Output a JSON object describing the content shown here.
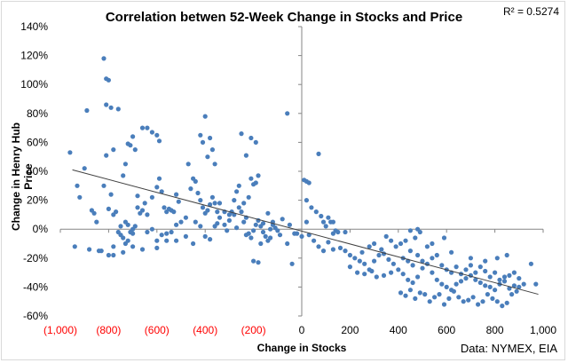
{
  "chart_data": {
    "type": "scatter",
    "title": "Correlation betwen 52-Week Change in Stocks and Price",
    "xlabel": "Change in Stocks",
    "ylabel": "Change in Henry Hub Price",
    "annotation_r2": "R² = 0.5274",
    "source": "Data: NYMEX, EIA",
    "xlim": [
      -1000,
      1000
    ],
    "ylim": [
      -60,
      140
    ],
    "x_ticks": [
      {
        "label": "(1,000)",
        "value": -1000,
        "color": "#ff0000"
      },
      {
        "label": "(800)",
        "value": -800,
        "color": "#ff0000"
      },
      {
        "label": "(600)",
        "value": -600,
        "color": "#ff0000"
      },
      {
        "label": "(400)",
        "value": -400,
        "color": "#ff0000"
      },
      {
        "label": "(200)",
        "value": -200,
        "color": "#ff0000"
      },
      {
        "label": "0",
        "value": 0,
        "color": "#000000"
      },
      {
        "label": "200",
        "value": 200,
        "color": "#000000"
      },
      {
        "label": "400",
        "value": 400,
        "color": "#000000"
      },
      {
        "label": "600",
        "value": 600,
        "color": "#000000"
      },
      {
        "label": "800",
        "value": 800,
        "color": "#000000"
      },
      {
        "label": "1,000",
        "value": 1000,
        "color": "#000000"
      }
    ],
    "y_ticks": [
      {
        "label": "140%",
        "value": 140
      },
      {
        "label": "120%",
        "value": 120
      },
      {
        "label": "100%",
        "value": 100
      },
      {
        "label": "80%",
        "value": 80
      },
      {
        "label": "60%",
        "value": 60
      },
      {
        "label": "40%",
        "value": 40
      },
      {
        "label": "20%",
        "value": 20
      },
      {
        "label": "0%",
        "value": 0
      },
      {
        "label": "-20%",
        "value": -20
      },
      {
        "label": "-40%",
        "value": -40
      },
      {
        "label": "-60%",
        "value": -60
      }
    ],
    "point_color": "#4a7ebb",
    "trendline": {
      "x": [
        -950,
        980
      ],
      "y": [
        41,
        -45
      ],
      "color": "#404040"
    },
    "points": [
      [
        -960,
        53
      ],
      [
        -930,
        30
      ],
      [
        -900,
        42
      ],
      [
        -890,
        82
      ],
      [
        -870,
        13
      ],
      [
        -860,
        11
      ],
      [
        -920,
        22
      ],
      [
        -940,
        -12
      ],
      [
        -880,
        -14
      ],
      [
        -850,
        5
      ],
      [
        -840,
        -15
      ],
      [
        -830,
        -15
      ],
      [
        -820,
        118
      ],
      [
        -810,
        104
      ],
      [
        -800,
        103
      ],
      [
        -810,
        86
      ],
      [
        -790,
        84
      ],
      [
        -760,
        83
      ],
      [
        -780,
        55
      ],
      [
        -810,
        51
      ],
      [
        -820,
        30
      ],
      [
        -790,
        24
      ],
      [
        -800,
        14
      ],
      [
        -780,
        10
      ],
      [
        -770,
        12
      ],
      [
        -760,
        -2
      ],
      [
        -780,
        -12
      ],
      [
        -800,
        -18
      ],
      [
        -750,
        -4
      ],
      [
        -740,
        -6
      ],
      [
        -730,
        -10
      ],
      [
        -720,
        -8
      ],
      [
        -710,
        -2
      ],
      [
        -700,
        -3
      ],
      [
        -750,
        2
      ],
      [
        -730,
        5
      ],
      [
        -720,
        3
      ],
      [
        -700,
        0
      ],
      [
        -690,
        2
      ],
      [
        -680,
        15
      ],
      [
        -670,
        11
      ],
      [
        -660,
        13
      ],
      [
        -740,
        37
      ],
      [
        -730,
        45
      ],
      [
        -720,
        59
      ],
      [
        -710,
        58
      ],
      [
        -700,
        64
      ],
      [
        -690,
        55
      ],
      [
        -660,
        70
      ],
      [
        -640,
        70
      ],
      [
        -620,
        67
      ],
      [
        -600,
        65
      ],
      [
        -590,
        61
      ],
      [
        -680,
        23
      ],
      [
        -650,
        18
      ],
      [
        -640,
        10
      ],
      [
        -620,
        22
      ],
      [
        -600,
        29
      ],
      [
        -590,
        35
      ],
      [
        -580,
        26
      ],
      [
        -570,
        15
      ],
      [
        -560,
        12
      ],
      [
        -550,
        14
      ],
      [
        -540,
        13
      ],
      [
        -530,
        12
      ],
      [
        -520,
        24
      ],
      [
        -510,
        19
      ],
      [
        -640,
        -2
      ],
      [
        -620,
        0
      ],
      [
        -600,
        -8
      ],
      [
        -580,
        -4
      ],
      [
        -560,
        -3
      ],
      [
        -540,
        -2
      ],
      [
        -520,
        3
      ],
      [
        -500,
        5
      ],
      [
        -480,
        8
      ],
      [
        -470,
        45
      ],
      [
        -460,
        28
      ],
      [
        -450,
        35
      ],
      [
        -440,
        33
      ],
      [
        -430,
        25
      ],
      [
        -420,
        20
      ],
      [
        -410,
        15
      ],
      [
        -400,
        11
      ],
      [
        -390,
        13
      ],
      [
        -380,
        17
      ],
      [
        -370,
        22
      ],
      [
        -360,
        18
      ],
      [
        -350,
        12
      ],
      [
        -400,
        78
      ],
      [
        -410,
        60
      ],
      [
        -420,
        65
      ],
      [
        -380,
        63
      ],
      [
        -370,
        55
      ],
      [
        -390,
        50
      ],
      [
        -360,
        45
      ],
      [
        -440,
        5
      ],
      [
        -420,
        2
      ],
      [
        -400,
        -5
      ],
      [
        -380,
        -7
      ],
      [
        -360,
        2
      ],
      [
        -340,
        8
      ],
      [
        -320,
        3
      ],
      [
        -300,
        10
      ],
      [
        -290,
        12
      ],
      [
        -280,
        20
      ],
      [
        -270,
        26
      ],
      [
        -260,
        30
      ],
      [
        -250,
        12
      ],
      [
        -240,
        5
      ],
      [
        -230,
        8
      ],
      [
        -220,
        -3
      ],
      [
        -210,
        -6
      ],
      [
        -200,
        -1
      ],
      [
        -190,
        3
      ],
      [
        -180,
        6
      ],
      [
        -170,
        2
      ],
      [
        -160,
        -2
      ],
      [
        -150,
        -5
      ],
      [
        -140,
        -8
      ],
      [
        -130,
        0
      ],
      [
        -120,
        3
      ],
      [
        -110,
        1
      ],
      [
        -100,
        -1
      ],
      [
        -250,
        66
      ],
      [
        -230,
        51
      ],
      [
        -210,
        63
      ],
      [
        -190,
        60
      ],
      [
        -210,
        35
      ],
      [
        -190,
        32
      ],
      [
        -180,
        37
      ],
      [
        -200,
        31
      ],
      [
        -220,
        22
      ],
      [
        -240,
        18
      ],
      [
        -260,
        15
      ],
      [
        -280,
        10
      ],
      [
        -300,
        6
      ],
      [
        -320,
        12
      ],
      [
        -340,
        18
      ],
      [
        -200,
        -22
      ],
      [
        -180,
        -23
      ],
      [
        -160,
        4
      ],
      [
        -140,
        11
      ],
      [
        -120,
        5
      ],
      [
        -80,
        7
      ],
      [
        -60,
        -10
      ],
      [
        -40,
        -24
      ],
      [
        -60,
        80
      ],
      [
        -20,
        -3
      ],
      [
        0,
        -5
      ],
      [
        10,
        34
      ],
      [
        20,
        33
      ],
      [
        30,
        32
      ],
      [
        20,
        20
      ],
      [
        40,
        15
      ],
      [
        60,
        12
      ],
      [
        70,
        52
      ],
      [
        80,
        9
      ],
      [
        90,
        5
      ],
      [
        100,
        2
      ],
      [
        110,
        8
      ],
      [
        120,
        5
      ],
      [
        130,
        -3
      ],
      [
        140,
        -1
      ],
      [
        150,
        -2
      ],
      [
        30,
        -4
      ],
      [
        50,
        -8
      ],
      [
        70,
        -12
      ],
      [
        90,
        -15
      ],
      [
        110,
        -9
      ],
      [
        130,
        -14
      ],
      [
        160,
        -13
      ],
      [
        180,
        -15
      ],
      [
        200,
        -18
      ],
      [
        220,
        -20
      ],
      [
        240,
        -22
      ],
      [
        260,
        -24
      ],
      [
        280,
        -28
      ],
      [
        300,
        -22
      ],
      [
        320,
        -18
      ],
      [
        340,
        -17
      ],
      [
        360,
        -21
      ],
      [
        380,
        -24
      ],
      [
        200,
        -26
      ],
      [
        230,
        -30
      ],
      [
        260,
        -31
      ],
      [
        290,
        -29
      ],
      [
        310,
        -33
      ],
      [
        340,
        -32
      ],
      [
        370,
        -30
      ],
      [
        400,
        -28
      ],
      [
        420,
        -31
      ],
      [
        440,
        -35
      ],
      [
        460,
        -37
      ],
      [
        480,
        -33
      ],
      [
        500,
        -27
      ],
      [
        520,
        -24
      ],
      [
        540,
        -30
      ],
      [
        560,
        -35
      ],
      [
        580,
        -38
      ],
      [
        600,
        -40
      ],
      [
        620,
        -42
      ],
      [
        640,
        -38
      ],
      [
        660,
        -36
      ],
      [
        680,
        -34
      ],
      [
        700,
        -32
      ],
      [
        720,
        -35
      ],
      [
        740,
        -37
      ],
      [
        760,
        -39
      ],
      [
        780,
        -40
      ],
      [
        800,
        -42
      ],
      [
        820,
        -38
      ],
      [
        840,
        -36
      ],
      [
        860,
        -41
      ],
      [
        880,
        -39
      ],
      [
        900,
        -40
      ],
      [
        920,
        -38
      ],
      [
        950,
        -24
      ],
      [
        970,
        -38
      ],
      [
        410,
        -44
      ],
      [
        430,
        -46
      ],
      [
        450,
        -42
      ],
      [
        470,
        -48
      ],
      [
        490,
        -44
      ],
      [
        510,
        -45
      ],
      [
        530,
        -50
      ],
      [
        550,
        -47
      ],
      [
        570,
        -45
      ],
      [
        590,
        -52
      ],
      [
        610,
        -48
      ],
      [
        630,
        -43
      ],
      [
        650,
        -47
      ],
      [
        670,
        -50
      ],
      [
        690,
        -49
      ],
      [
        710,
        -47
      ],
      [
        730,
        -52
      ],
      [
        750,
        -50
      ],
      [
        770,
        -45
      ],
      [
        790,
        -48
      ],
      [
        810,
        -50
      ],
      [
        830,
        -53
      ],
      [
        850,
        -51
      ],
      [
        870,
        -45
      ],
      [
        890,
        -43
      ],
      [
        410,
        -10
      ],
      [
        430,
        -8
      ],
      [
        450,
        -15
      ],
      [
        470,
        -6
      ],
      [
        490,
        -2
      ],
      [
        520,
        -12
      ],
      [
        540,
        -20
      ],
      [
        560,
        -18
      ],
      [
        420,
        -20
      ],
      [
        440,
        -22
      ],
      [
        460,
        -25
      ],
      [
        480,
        -18
      ],
      [
        500,
        -22
      ],
      [
        580,
        -25
      ],
      [
        600,
        -28
      ],
      [
        620,
        -30
      ],
      [
        640,
        -26
      ],
      [
        660,
        -31
      ],
      [
        680,
        -28
      ],
      [
        700,
        -25
      ],
      [
        720,
        -30
      ],
      [
        740,
        -26
      ],
      [
        760,
        -29
      ],
      [
        780,
        -33
      ],
      [
        800,
        -30
      ],
      [
        820,
        -35
      ],
      [
        840,
        -33
      ],
      [
        860,
        -32
      ],
      [
        880,
        -30
      ],
      [
        900,
        -34
      ],
      [
        540,
        -10
      ],
      [
        590,
        -6
      ],
      [
        620,
        -16
      ],
      [
        700,
        -20
      ],
      [
        760,
        -22
      ],
      [
        810,
        -20
      ],
      [
        850,
        -18
      ],
      [
        350,
        -5
      ],
      [
        370,
        -8
      ],
      [
        390,
        -12
      ],
      [
        450,
        -1
      ],
      [
        480,
        0
      ],
      [
        300,
        -10
      ],
      [
        330,
        -14
      ],
      [
        280,
        -12
      ],
      [
        250,
        -16
      ],
      [
        180,
        -2
      ],
      [
        130,
        5
      ],
      [
        20,
        5
      ],
      [
        -30,
        -3
      ],
      [
        -50,
        3
      ],
      [
        -90,
        -4
      ],
      [
        -130,
        -6
      ],
      [
        -170,
        -10
      ],
      [
        -230,
        -4
      ],
      [
        -270,
        1
      ],
      [
        -310,
        -1
      ],
      [
        -350,
        4
      ],
      [
        -450,
        -10
      ],
      [
        -480,
        -5
      ],
      [
        -520,
        -8
      ],
      [
        -560,
        -8
      ],
      [
        -600,
        -13
      ],
      [
        -660,
        -14
      ],
      [
        -700,
        -12
      ],
      [
        -740,
        -16
      ],
      [
        -780,
        -18
      ]
    ]
  }
}
